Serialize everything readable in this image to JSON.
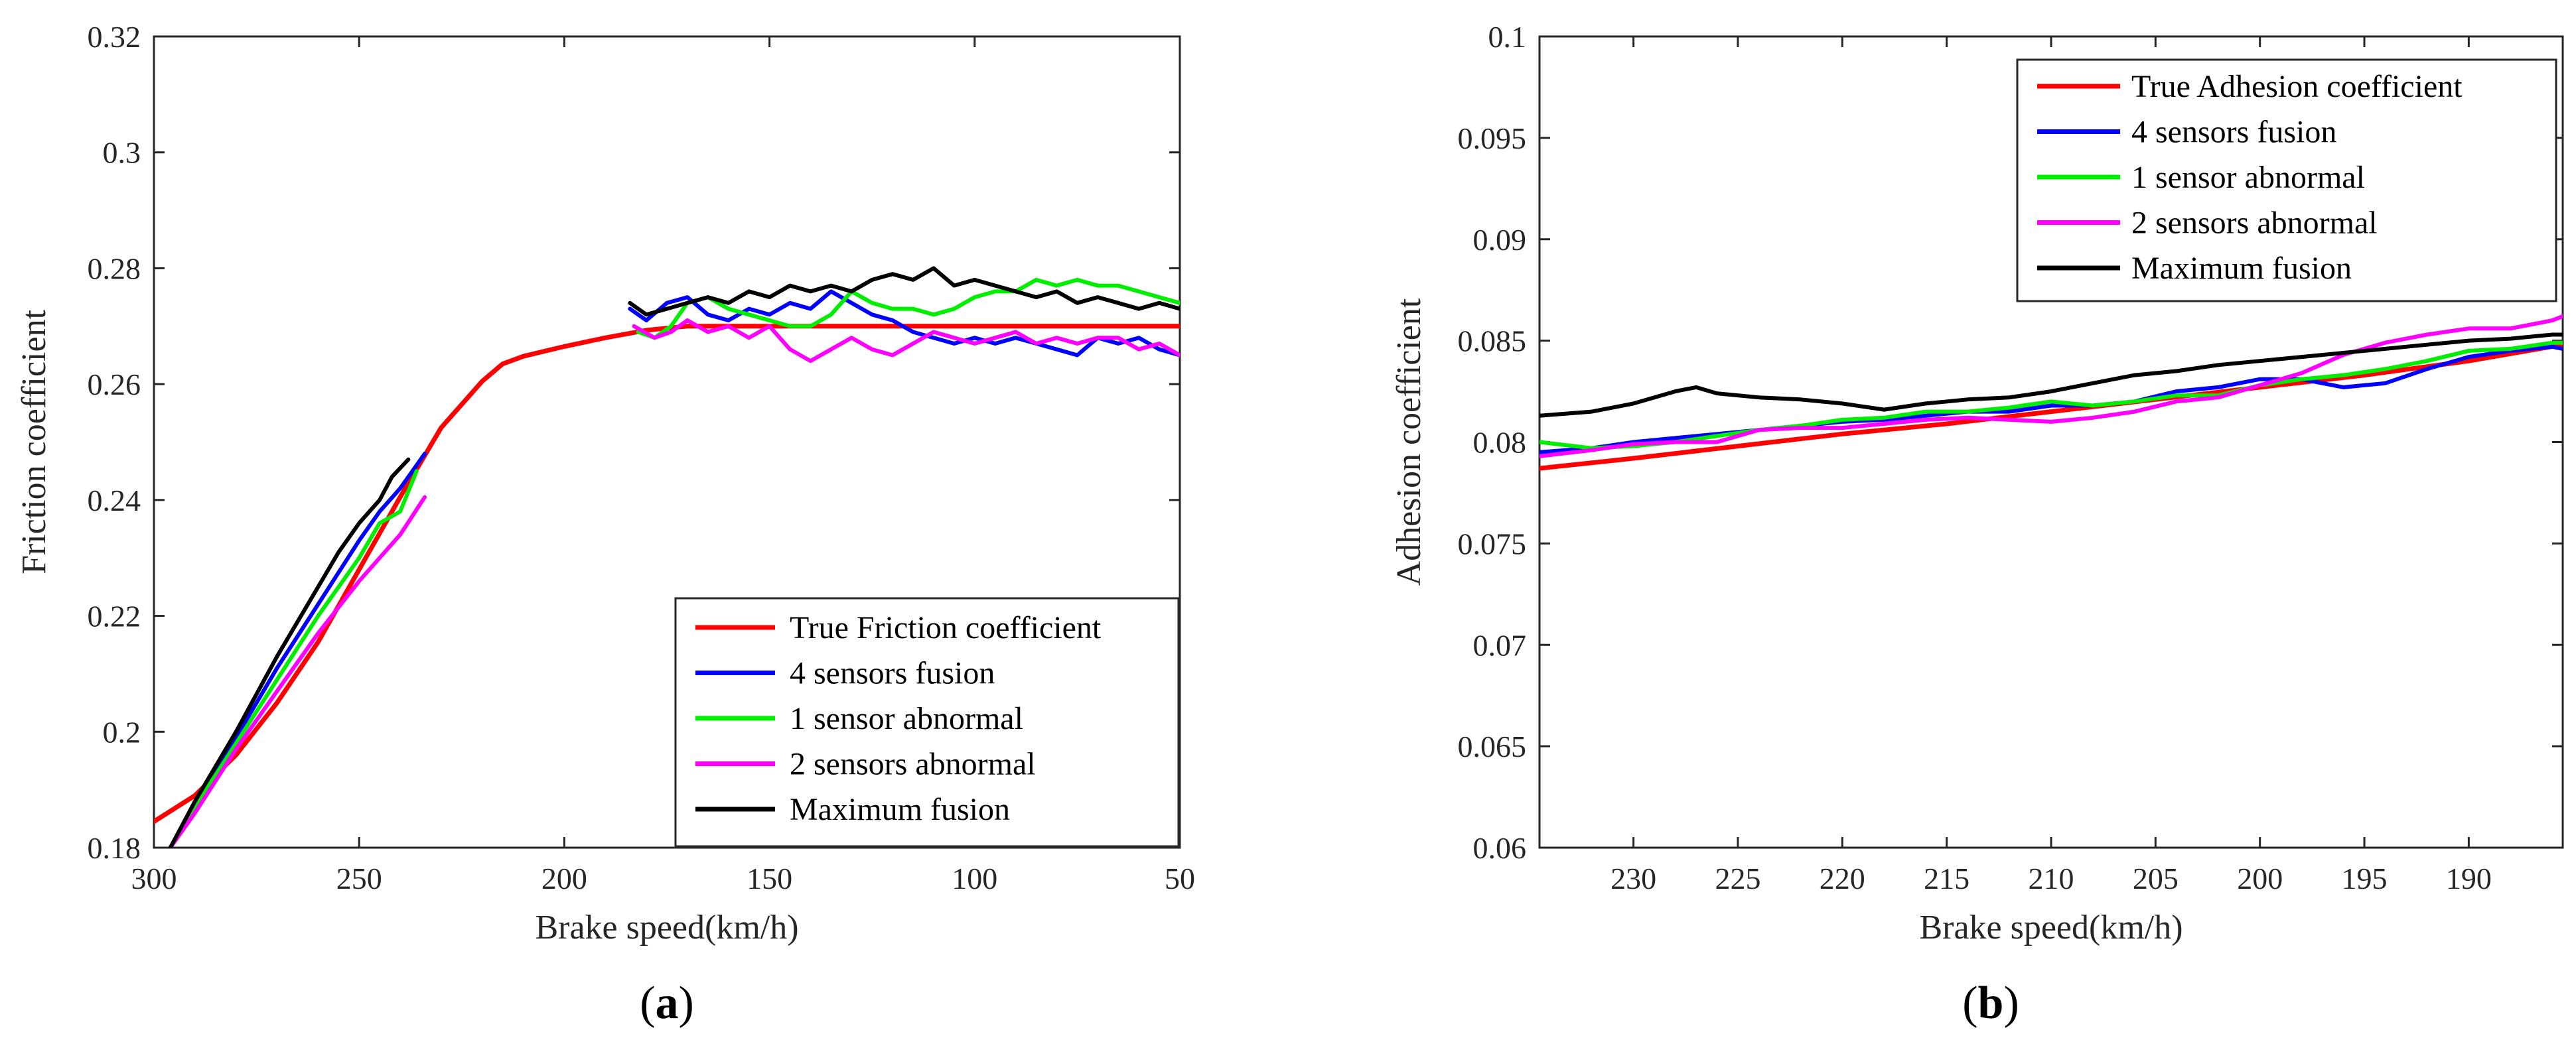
{
  "chart_data": [
    {
      "type": "line",
      "panel_label_open": "(",
      "panel_label_letter": "a",
      "panel_label_close": ")",
      "xlabel": "Brake speed(km/h)",
      "ylabel": "Friction coefficient",
      "xlim": [
        300,
        50
      ],
      "ylim": [
        0.18,
        0.32
      ],
      "xticks": [
        300,
        250,
        200,
        150,
        100,
        50
      ],
      "xtick_labels": [
        "300",
        "250",
        "200",
        "150",
        "100",
        "50"
      ],
      "yticks": [
        0.18,
        0.2,
        0.22,
        0.24,
        0.26,
        0.28,
        0.3,
        0.32
      ],
      "ytick_labels": [
        "0.18",
        "0.2",
        "0.22",
        "0.24",
        "0.26",
        "0.28",
        "0.3",
        "0.32"
      ],
      "legend_position": "bottom-right",
      "series": [
        {
          "name": "True Friction coefficient",
          "color": "#ff0000",
          "x": [
            300,
            290,
            280,
            270,
            260,
            250,
            240,
            230,
            220,
            215,
            210,
            200,
            190,
            180,
            170,
            150,
            100,
            50
          ],
          "y": [
            0.1845,
            0.189,
            0.196,
            0.205,
            0.2155,
            0.228,
            0.2405,
            0.2525,
            0.2605,
            0.2635,
            0.2648,
            0.2665,
            0.268,
            0.2693,
            0.27,
            0.27,
            0.27,
            0.27
          ]
        },
        {
          "name": "4 sensors fusion",
          "color": "#0000ff",
          "x": [
            296,
            290,
            280,
            270,
            260,
            250,
            245,
            240,
            237,
            234,
            null,
            184,
            180,
            175,
            170,
            165,
            160,
            155,
            150,
            145,
            140,
            135,
            130,
            125,
            120,
            115,
            110,
            105,
            100,
            95,
            90,
            85,
            80,
            75,
            70,
            65,
            60,
            55,
            50
          ],
          "y": [
            0.18,
            0.187,
            0.199,
            0.211,
            0.222,
            0.233,
            0.238,
            0.242,
            0.245,
            0.248,
            null,
            0.273,
            0.271,
            0.274,
            0.275,
            0.272,
            0.271,
            0.273,
            0.272,
            0.274,
            0.273,
            0.276,
            0.274,
            0.272,
            0.271,
            0.269,
            0.268,
            0.267,
            0.268,
            0.267,
            0.268,
            0.267,
            0.266,
            0.265,
            0.268,
            0.267,
            0.268,
            0.266,
            0.265
          ]
        },
        {
          "name": "1 sensor abnormal",
          "color": "#00ee00",
          "x": [
            296,
            290,
            280,
            270,
            260,
            250,
            245,
            240,
            236,
            null,
            182,
            178,
            174,
            170,
            165,
            160,
            155,
            150,
            145,
            140,
            135,
            130,
            125,
            120,
            115,
            110,
            105,
            100,
            95,
            90,
            85,
            80,
            75,
            70,
            65,
            60,
            55,
            50
          ],
          "y": [
            0.18,
            0.187,
            0.198,
            0.209,
            0.22,
            0.23,
            0.236,
            0.238,
            0.245,
            null,
            0.269,
            0.268,
            0.27,
            0.274,
            0.275,
            0.273,
            0.272,
            0.271,
            0.27,
            0.27,
            0.272,
            0.276,
            0.274,
            0.273,
            0.273,
            0.272,
            0.273,
            0.275,
            0.276,
            0.276,
            0.278,
            0.277,
            0.278,
            0.277,
            0.277,
            0.276,
            0.275,
            0.274
          ]
        },
        {
          "name": "2 sensors abnormal",
          "color": "#ff00ff",
          "x": [
            296,
            290,
            280,
            270,
            260,
            250,
            245,
            240,
            234,
            null,
            183,
            178,
            174,
            170,
            165,
            160,
            155,
            150,
            145,
            140,
            135,
            130,
            125,
            120,
            115,
            110,
            105,
            100,
            95,
            90,
            85,
            80,
            75,
            70,
            65,
            60,
            55,
            50
          ],
          "y": [
            0.18,
            0.186,
            0.197,
            0.207,
            0.217,
            0.226,
            0.23,
            0.234,
            0.2405,
            null,
            0.27,
            0.268,
            0.269,
            0.271,
            0.269,
            0.27,
            0.268,
            0.27,
            0.266,
            0.264,
            0.266,
            0.268,
            0.266,
            0.265,
            0.267,
            0.269,
            0.268,
            0.267,
            0.268,
            0.269,
            0.267,
            0.268,
            0.267,
            0.268,
            0.268,
            0.266,
            0.267,
            0.265
          ]
        },
        {
          "name": "Maximum fusion",
          "color": "#000000",
          "x": [
            296,
            290,
            280,
            270,
            260,
            255,
            250,
            245,
            242,
            238,
            null,
            184,
            180,
            175,
            170,
            165,
            160,
            155,
            150,
            145,
            140,
            135,
            130,
            125,
            120,
            115,
            110,
            105,
            100,
            95,
            90,
            85,
            80,
            75,
            70,
            65,
            60,
            55,
            50
          ],
          "y": [
            0.18,
            0.188,
            0.2,
            0.213,
            0.225,
            0.231,
            0.236,
            0.24,
            0.244,
            0.247,
            null,
            0.274,
            0.272,
            0.273,
            0.274,
            0.275,
            0.274,
            0.276,
            0.275,
            0.277,
            0.276,
            0.277,
            0.276,
            0.278,
            0.279,
            0.278,
            0.28,
            0.277,
            0.278,
            0.277,
            0.276,
            0.275,
            0.276,
            0.274,
            0.275,
            0.274,
            0.273,
            0.274,
            0.273
          ]
        }
      ]
    },
    {
      "type": "line",
      "panel_label_open": "(",
      "panel_label_letter": "b",
      "panel_label_close": ")",
      "xlabel": "Brake speed(km/h)",
      "ylabel": "Adhesion coefficient",
      "xlim": [
        234.5,
        185.5
      ],
      "ylim": [
        0.06,
        0.1
      ],
      "xticks": [
        230,
        225,
        220,
        215,
        210,
        205,
        200,
        195,
        190
      ],
      "xtick_labels": [
        "230",
        "225",
        "220",
        "215",
        "210",
        "205",
        "200",
        "195",
        "190"
      ],
      "yticks": [
        0.06,
        0.065,
        0.07,
        0.075,
        0.08,
        0.085,
        0.09,
        0.095,
        0.1
      ],
      "ytick_labels": [
        "0.06",
        "0.065",
        "0.07",
        "0.075",
        "0.08",
        "0.085",
        "0.09",
        "0.095",
        "0.1"
      ],
      "legend_position": "top-right",
      "series": [
        {
          "name": "True Adhesion coefficient",
          "color": "#ff0000",
          "x": [
            234.5,
            230,
            225,
            220,
            215,
            210,
            205,
            200,
            195,
            190,
            185.5
          ],
          "y": [
            0.0787,
            0.0792,
            0.0798,
            0.0804,
            0.0809,
            0.0815,
            0.0821,
            0.0827,
            0.0833,
            0.084,
            0.0848
          ]
        },
        {
          "name": "4 sensors fusion",
          "color": "#0000ff",
          "x": [
            234.5,
            232,
            230,
            228,
            226,
            224,
            222,
            220,
            218,
            216,
            214,
            212,
            210,
            208,
            206,
            204,
            202,
            200,
            198,
            196,
            194,
            192,
            190,
            188,
            186,
            185.5
          ],
          "y": [
            0.0795,
            0.0797,
            0.08,
            0.0802,
            0.0804,
            0.0806,
            0.0808,
            0.081,
            0.0811,
            0.0813,
            0.0815,
            0.0815,
            0.0818,
            0.0818,
            0.082,
            0.0825,
            0.0827,
            0.0831,
            0.0831,
            0.0827,
            0.0829,
            0.0836,
            0.0842,
            0.0845,
            0.0847,
            0.0846
          ]
        },
        {
          "name": "1 sensor abnormal",
          "color": "#00ee00",
          "x": [
            234.5,
            232,
            230,
            228,
            226,
            224,
            222,
            220,
            218,
            216,
            214,
            212,
            210,
            208,
            206,
            204,
            202,
            200,
            198,
            196,
            194,
            192,
            190,
            188,
            186,
            185.5
          ],
          "y": [
            0.08,
            0.0797,
            0.0798,
            0.08,
            0.0803,
            0.0806,
            0.0808,
            0.0811,
            0.0812,
            0.0815,
            0.0815,
            0.0817,
            0.082,
            0.0818,
            0.082,
            0.0823,
            0.0823,
            0.0828,
            0.0831,
            0.0833,
            0.0836,
            0.084,
            0.0845,
            0.0846,
            0.0849,
            0.0849
          ]
        },
        {
          "name": "2 sensors abnormal",
          "color": "#ff00ff",
          "x": [
            234.5,
            232,
            230,
            228,
            226,
            224,
            222,
            220,
            218,
            216,
            214,
            212,
            210,
            208,
            206,
            204,
            202,
            200,
            198,
            196,
            194,
            192,
            190,
            188,
            186,
            185.5
          ],
          "y": [
            0.0793,
            0.0796,
            0.0799,
            0.08,
            0.08,
            0.0806,
            0.0807,
            0.0807,
            0.0809,
            0.0811,
            0.0812,
            0.0811,
            0.081,
            0.0812,
            0.0815,
            0.082,
            0.0822,
            0.0828,
            0.0834,
            0.0843,
            0.0849,
            0.0853,
            0.0856,
            0.0856,
            0.086,
            0.0862
          ]
        },
        {
          "name": "Maximum fusion",
          "color": "#000000",
          "x": [
            234.5,
            232,
            230,
            228,
            227,
            226,
            224,
            222,
            220,
            218,
            216,
            214,
            212,
            210,
            208,
            206,
            204,
            202,
            200,
            198,
            196,
            194,
            192,
            190,
            188,
            186,
            185.5
          ],
          "y": [
            0.0813,
            0.0815,
            0.0819,
            0.0825,
            0.0827,
            0.0824,
            0.0822,
            0.0821,
            0.0819,
            0.0816,
            0.0819,
            0.0821,
            0.0822,
            0.0825,
            0.0829,
            0.0833,
            0.0835,
            0.0838,
            0.084,
            0.0842,
            0.0844,
            0.0846,
            0.0848,
            0.085,
            0.0851,
            0.0853,
            0.0853
          ]
        }
      ]
    }
  ]
}
